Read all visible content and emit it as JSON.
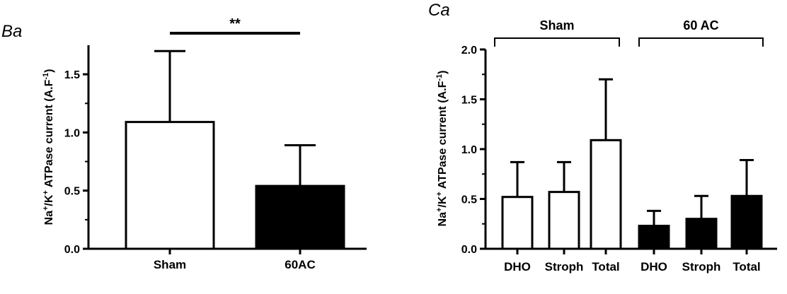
{
  "chart_data": [
    {
      "type": "bar",
      "panel_label": "Ba",
      "ylabel_parts": [
        "Na",
        "+",
        "/K",
        "+",
        " ATPase current (A.F",
        "-1",
        ")"
      ],
      "categories": [
        "Sham",
        "60AC"
      ],
      "values": [
        1.09,
        0.54
      ],
      "errors": [
        0.61,
        0.35
      ],
      "fills": [
        "white",
        "black"
      ],
      "ylim": [
        0,
        1.75
      ],
      "yticks": [
        "0.0",
        "0.5",
        "1.0",
        "1.5"
      ],
      "significance": "**"
    },
    {
      "type": "bar",
      "panel_label": "Ca",
      "ylabel_parts": [
        "Na",
        "+",
        "/K",
        "+",
        " ATPase current (A.F",
        "-1",
        ")"
      ],
      "categories": [
        "DHO",
        "Stroph",
        "Total",
        "DHO",
        "Stroph",
        "Total"
      ],
      "values": [
        0.52,
        0.57,
        1.09,
        0.23,
        0.3,
        0.53
      ],
      "errors": [
        0.35,
        0.3,
        0.61,
        0.15,
        0.23,
        0.36
      ],
      "fills": [
        "white",
        "white",
        "white",
        "black",
        "black",
        "black"
      ],
      "ylim": [
        0,
        2.0
      ],
      "yticks": [
        "0.0",
        "0.5",
        "1.0",
        "1.5",
        "2.0"
      ],
      "groups": [
        "Sham",
        "60 AC"
      ]
    }
  ]
}
